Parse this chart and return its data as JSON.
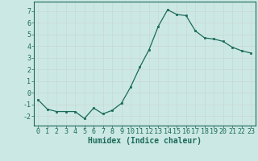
{
  "x": [
    0,
    1,
    2,
    3,
    4,
    5,
    6,
    7,
    8,
    9,
    10,
    11,
    12,
    13,
    14,
    15,
    16,
    17,
    18,
    19,
    20,
    21,
    22,
    23
  ],
  "y": [
    -0.6,
    -1.4,
    -1.6,
    -1.6,
    -1.6,
    -2.2,
    -1.3,
    -1.8,
    -1.5,
    -0.9,
    0.5,
    2.2,
    3.7,
    5.7,
    7.1,
    6.7,
    6.6,
    5.3,
    4.7,
    4.6,
    4.4,
    3.9,
    3.6,
    3.4
  ],
  "xlabel": "Humidex (Indice chaleur)",
  "ylim": [
    -2.8,
    7.8
  ],
  "xlim": [
    -0.5,
    23.5
  ],
  "yticks": [
    -2,
    -1,
    0,
    1,
    2,
    3,
    4,
    5,
    6,
    7
  ],
  "xticks": [
    0,
    1,
    2,
    3,
    4,
    5,
    6,
    7,
    8,
    9,
    10,
    11,
    12,
    13,
    14,
    15,
    16,
    17,
    18,
    19,
    20,
    21,
    22,
    23
  ],
  "line_color": "#1a6b5a",
  "marker_color": "#1a6b5a",
  "bg_color": "#cce8e4",
  "grid_color": "#c8d8d4",
  "axis_color": "#1a6b5a",
  "font_color": "#1a6b5a",
  "xlabel_fontsize": 7.0,
  "tick_fontsize": 6.0
}
